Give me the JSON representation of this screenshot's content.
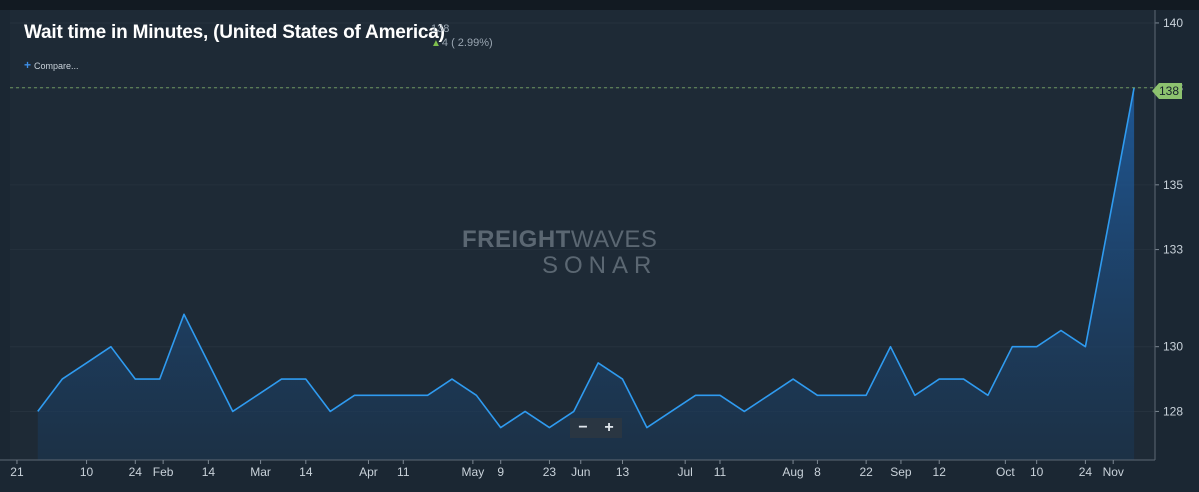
{
  "header": {
    "title": "Wait time in Minutes, (United States of America)",
    "last_value": "138",
    "change": "4 ( 2.99%)",
    "compare_label": "Compare..."
  },
  "watermark": {
    "line1_bold": "FREIGHT",
    "line1_thin": "WAVES",
    "line2": "SONAR"
  },
  "zoom": {
    "minus": "−",
    "plus": "+"
  },
  "colors": {
    "background": "#1b2733",
    "line": "#2f9bf0",
    "badge": "#8dc26f",
    "grid": "#2a3642"
  },
  "chart_data": {
    "type": "area",
    "title": "Wait time in Minutes, (United States of America)",
    "ylim": [
      126.5,
      140.4
    ],
    "y_ticks": [
      128,
      130,
      133,
      135,
      138,
      140
    ],
    "y_tick_labels": [
      "128",
      "130",
      "133",
      "135",
      "138",
      "140"
    ],
    "x_tick_labels": [
      "21",
      "10",
      "24",
      "Feb",
      "14",
      "Mar",
      "14",
      "Apr",
      "11",
      "May",
      "9",
      "23",
      "Jun",
      "13",
      "Jul",
      "11",
      "Aug",
      "8",
      "22",
      "Sep",
      "12",
      "Oct",
      "10",
      "24",
      "Nov"
    ],
    "x_tick_dates": [
      "2021-12-21",
      "2022-01-10",
      "2022-01-24",
      "2022-02-01",
      "2022-02-14",
      "2022-03-01",
      "2022-03-14",
      "2022-04-01",
      "2022-04-11",
      "2022-05-01",
      "2022-05-09",
      "2022-05-23",
      "2022-06-01",
      "2022-06-13",
      "2022-07-01",
      "2022-07-11",
      "2022-08-01",
      "2022-08-08",
      "2022-08-22",
      "2022-09-01",
      "2022-09-12",
      "2022-10-01",
      "2022-10-10",
      "2022-10-24",
      "2022-11-01"
    ],
    "series": [
      {
        "x": [
          "2021-12-27",
          "2022-01-03",
          "2022-01-10",
          "2022-01-17",
          "2022-01-24",
          "2022-01-31",
          "2022-02-07",
          "2022-02-14",
          "2022-02-21",
          "2022-02-28",
          "2022-03-07",
          "2022-03-14",
          "2022-03-21",
          "2022-03-28",
          "2022-04-04",
          "2022-04-11",
          "2022-04-18",
          "2022-04-25",
          "2022-05-02",
          "2022-05-09",
          "2022-05-16",
          "2022-05-23",
          "2022-05-30",
          "2022-06-06",
          "2022-06-13",
          "2022-06-20",
          "2022-06-27",
          "2022-07-04",
          "2022-07-11",
          "2022-07-18",
          "2022-07-25",
          "2022-08-01",
          "2022-08-08",
          "2022-08-15",
          "2022-08-22",
          "2022-08-29",
          "2022-09-05",
          "2022-09-12",
          "2022-09-19",
          "2022-09-26",
          "2022-10-03",
          "2022-10-10",
          "2022-10-17",
          "2022-10-24",
          "2022-10-31",
          "2022-11-07"
        ],
        "y": [
          128,
          129,
          129.5,
          130,
          129,
          129,
          131,
          129.5,
          128,
          128.5,
          129,
          129,
          128,
          128.5,
          128.5,
          128.5,
          128.5,
          129,
          128.5,
          127.5,
          128,
          127.5,
          128,
          129.5,
          129,
          127.5,
          128,
          128.5,
          128.5,
          128,
          128.5,
          129,
          128.5,
          128.5,
          128.5,
          130,
          128.5,
          129,
          129,
          128.5,
          130,
          130,
          130.5,
          130,
          134,
          138
        ]
      }
    ],
    "last_value": 138,
    "reference_line": 138,
    "grid": true
  }
}
